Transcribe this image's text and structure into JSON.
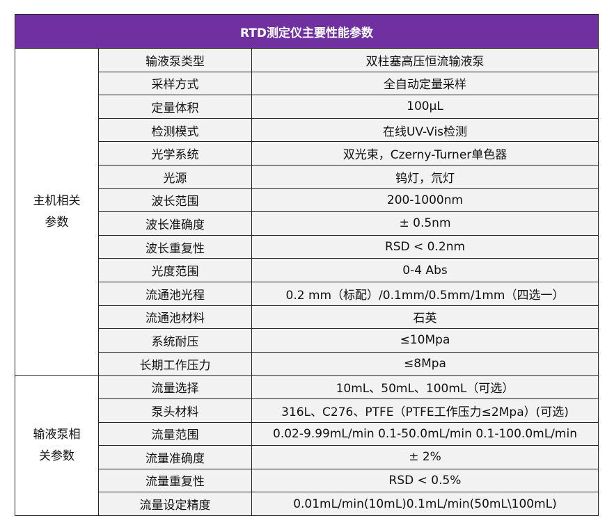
{
  "table": {
    "title": "RTD测定仪主要性能参数",
    "groups": [
      {
        "label_lines": [
          "主机相关",
          "参数"
        ],
        "rows": [
          {
            "name": "输液泵类型",
            "value": "双柱塞高压恒流输液泵"
          },
          {
            "name": "采样方式",
            "value": "全自动定量采样"
          },
          {
            "name": "定量体积",
            "value": "100μL"
          },
          {
            "name": "检测模式",
            "value": "在线UV-Vis检测"
          },
          {
            "name": "光学系统",
            "value": "双光束，Czerny-Turner单色器"
          },
          {
            "name": "光源",
            "value": "钨灯，氘灯"
          },
          {
            "name": "波长范围",
            "value": "200-1000nm"
          },
          {
            "name": "波长准确度",
            "value": "± 0.5nm"
          },
          {
            "name": "波长重复性",
            "value": "RSD < 0.2nm"
          },
          {
            "name": "光度范围",
            "value": "0-4 Abs"
          },
          {
            "name": "流通池光程",
            "value": "0.2 mm（标配）/0.1mm/0.5mm/1mm（四选一）"
          },
          {
            "name": "流通池材料",
            "value": "石英"
          },
          {
            "name": "系统耐压",
            "value": "≤10Mpa"
          },
          {
            "name": "长期工作压力",
            "value": "≤8Mpa"
          }
        ]
      },
      {
        "label_lines": [
          "输液泵相",
          "关参数"
        ],
        "rows": [
          {
            "name": "流量选择",
            "value": "10mL、50mL、100mL（可选）"
          },
          {
            "name": "泵头材料",
            "value": "316L、C276、PTFE（PTFE工作压力≤2Mpa）(可选)"
          },
          {
            "name": "流量范围",
            "value": "0.02-9.99mL/min 0.1-50.0mL/min 0.1-100.0mL/min"
          },
          {
            "name": "流量准确度",
            "value": "± 2%"
          },
          {
            "name": "流量重复性",
            "value": "RSD < 0.5%"
          },
          {
            "name": "流量设定精度",
            "value": "0.01mL/min(10mL)0.1mL/min(50mL\\100mL)"
          }
        ]
      }
    ]
  }
}
